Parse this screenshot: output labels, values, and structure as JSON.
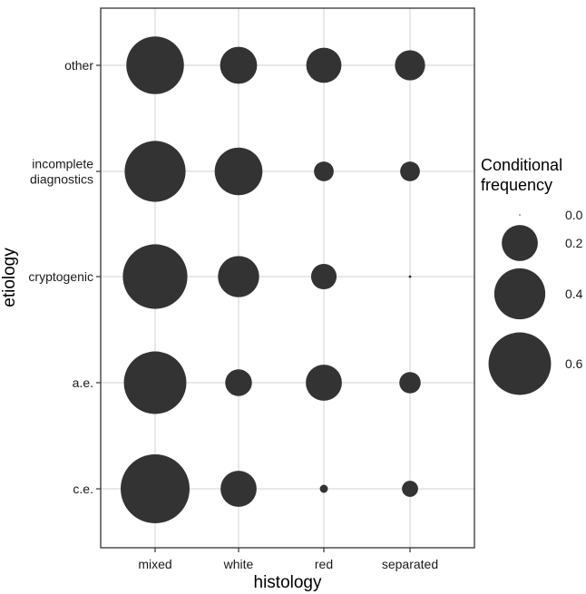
{
  "chart_data": {
    "type": "scatter",
    "subtype": "bubble",
    "xlabel": "histology",
    "ylabel": "etiology",
    "x_categories": [
      "mixed",
      "white",
      "red",
      "separated"
    ],
    "y_categories": [
      "c.e.",
      "a.e.",
      "cryptogenic",
      "incomplete\ndiagnostics",
      "other"
    ],
    "size_variable": "Conditional frequency",
    "points": [
      {
        "x": "mixed",
        "y": "other",
        "value": 0.51
      },
      {
        "x": "white",
        "y": "other",
        "value": 0.21
      },
      {
        "x": "red",
        "y": "other",
        "value": 0.19
      },
      {
        "x": "separated",
        "y": "other",
        "value": 0.14
      },
      {
        "x": "mixed",
        "y": "incomplete\ndiagnostics",
        "value": 0.57
      },
      {
        "x": "white",
        "y": "incomplete\ndiagnostics",
        "value": 0.35
      },
      {
        "x": "red",
        "y": "incomplete\ndiagnostics",
        "value": 0.06
      },
      {
        "x": "separated",
        "y": "incomplete\ndiagnostics",
        "value": 0.06
      },
      {
        "x": "mixed",
        "y": "cryptogenic",
        "value": 0.64
      },
      {
        "x": "white",
        "y": "cryptogenic",
        "value": 0.26
      },
      {
        "x": "red",
        "y": "cryptogenic",
        "value": 0.1
      },
      {
        "x": "separated",
        "y": "cryptogenic",
        "value": 0.001
      },
      {
        "x": "mixed",
        "y": "a.e.",
        "value": 0.6
      },
      {
        "x": "white",
        "y": "a.e.",
        "value": 0.11
      },
      {
        "x": "red",
        "y": "a.e.",
        "value": 0.2
      },
      {
        "x": "separated",
        "y": "a.e.",
        "value": 0.07
      },
      {
        "x": "mixed",
        "y": "c.e.",
        "value": 0.73
      },
      {
        "x": "white",
        "y": "c.e.",
        "value": 0.2
      },
      {
        "x": "red",
        "y": "c.e.",
        "value": 0.01
      },
      {
        "x": "separated",
        "y": "c.e.",
        "value": 0.04
      }
    ],
    "legend": {
      "title_lines": [
        "Conditional",
        "frequency"
      ],
      "values": [
        0.0,
        0.2,
        0.4,
        0.6
      ],
      "labels": [
        "0.0",
        "0.2",
        "0.4",
        "0.6"
      ],
      "position": "right"
    },
    "grid": true,
    "colors": {
      "marker": "#333333",
      "grid": "#d9d9d9",
      "border": "#333333"
    }
  }
}
